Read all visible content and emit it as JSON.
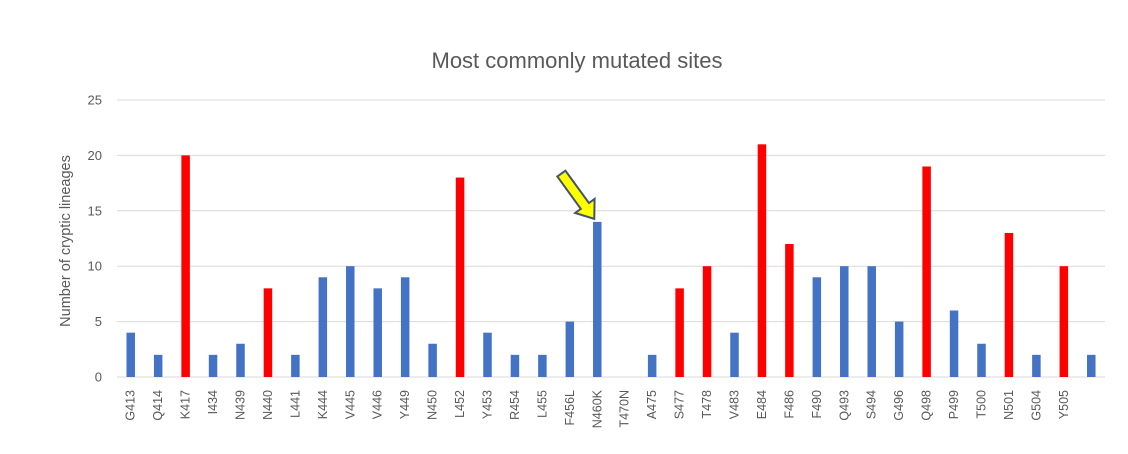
{
  "chart_data": {
    "type": "bar",
    "title": "Most commonly mutated sites",
    "xlabel": "",
    "ylabel": "Number of cryptic lineages",
    "ylim": [
      0,
      25
    ],
    "yticks": [
      0,
      5,
      10,
      15,
      20,
      25
    ],
    "grid": true,
    "legend": "none",
    "categories": [
      "G413",
      "Q414",
      "K417",
      "I434",
      "N439",
      "N440",
      "L441",
      "K444",
      "V445",
      "V446",
      "Y449",
      "N450",
      "L452",
      "Y453",
      "R454",
      "L455",
      "F456L",
      "N460K",
      "T470N",
      "A475",
      "S477",
      "T478",
      "V483",
      "E484",
      "F486",
      "F490",
      "Q493",
      "S494",
      "G496",
      "Q498",
      "P499",
      "T500",
      "N501",
      "G504",
      "Y505",
      ""
    ],
    "values": [
      4,
      2,
      20,
      2,
      3,
      8,
      2,
      9,
      10,
      8,
      9,
      3,
      18,
      4,
      2,
      2,
      5,
      14,
      0,
      2,
      8,
      10,
      4,
      21,
      12,
      9,
      10,
      10,
      5,
      19,
      6,
      3,
      13,
      2,
      10,
      2
    ],
    "highlight": [
      "blue",
      "blue",
      "red",
      "blue",
      "blue",
      "red",
      "blue",
      "blue",
      "blue",
      "blue",
      "blue",
      "blue",
      "red",
      "blue",
      "blue",
      "blue",
      "blue",
      "blue",
      "blue",
      "blue",
      "red",
      "red",
      "blue",
      "red",
      "red",
      "blue",
      "blue",
      "blue",
      "blue",
      "red",
      "blue",
      "blue",
      "red",
      "blue",
      "red",
      "blue"
    ],
    "colors": {
      "blue": "#4472c4",
      "red": "#ff0000",
      "grid": "#d9d9d9",
      "text": "#595959",
      "arrow_fill": "#ffff00",
      "arrow_stroke": "#44546a"
    },
    "annotation": {
      "type": "arrow",
      "target": "N460K"
    }
  }
}
